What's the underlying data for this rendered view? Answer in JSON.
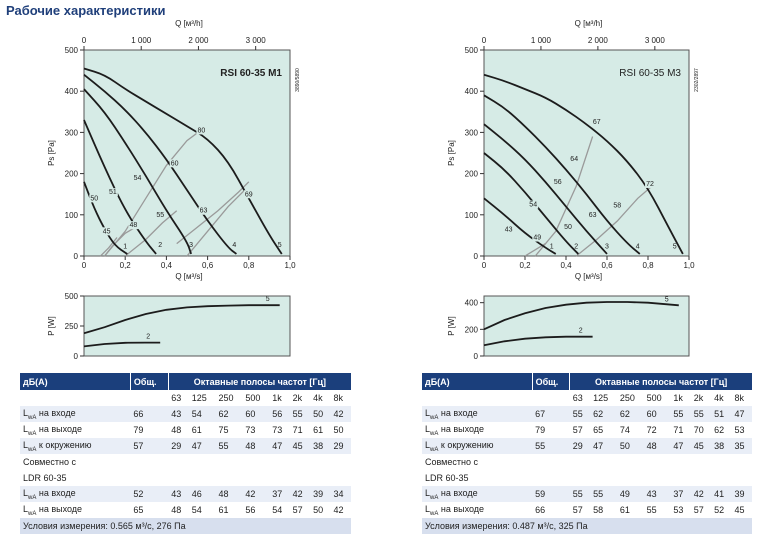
{
  "page_title": "Рабочие характеристики",
  "charts": [
    {
      "model_label": "RSI 60-35 M1",
      "doc_code": "3890/5890",
      "q_top_label": "Q [м³/h]",
      "q_bottom_label": "Q [м³/s]",
      "ps_label": "Ps [Pa]",
      "p_label": "P [W]"
    },
    {
      "model_label": "RSI 60-35 M3",
      "doc_code": "2302/2897",
      "q_top_label": "Q [м³/h]",
      "q_bottom_label": "Q [м³/s]",
      "ps_label": "Ps [Pa]",
      "p_label": "P [W]"
    }
  ],
  "chart_data": [
    {
      "type": "line",
      "title": "RSI 60-35 M1",
      "xlabel": "Q [м³/s]",
      "x2label": "Q [м³/h]",
      "ylabel": "Ps [Pa]",
      "xlim": [
        0,
        1.0
      ],
      "x2lim": [
        0,
        3600
      ],
      "ylim": [
        0,
        500
      ],
      "xticks": [
        "0",
        "0,2",
        "0,4",
        "0,6",
        "0,8",
        "1,0"
      ],
      "x2ticks": [
        "0",
        "1 000",
        "2 000",
        "3 000"
      ],
      "yticks": [
        "0",
        "100",
        "200",
        "300",
        "400",
        "500"
      ],
      "grid": false,
      "series": [
        {
          "name": "5",
          "x": [
            0,
            0.1,
            0.2,
            0.3,
            0.4,
            0.5,
            0.6,
            0.7,
            0.8,
            0.9,
            0.96
          ],
          "y": [
            455,
            440,
            405,
            375,
            345,
            315,
            285,
            230,
            140,
            50,
            5
          ]
        },
        {
          "name": "4",
          "x": [
            0,
            0.1,
            0.2,
            0.3,
            0.4,
            0.5,
            0.6,
            0.7,
            0.74
          ],
          "y": [
            440,
            400,
            355,
            300,
            235,
            160,
            85,
            20,
            5
          ]
        },
        {
          "name": "3",
          "x": [
            0,
            0.1,
            0.2,
            0.3,
            0.4,
            0.5,
            0.52
          ],
          "y": [
            405,
            350,
            275,
            195,
            110,
            35,
            5
          ]
        },
        {
          "name": "2",
          "x": [
            0,
            0.1,
            0.2,
            0.3,
            0.35
          ],
          "y": [
            330,
            215,
            110,
            35,
            5
          ]
        },
        {
          "name": "1",
          "x": [
            0,
            0.05,
            0.1,
            0.15,
            0.21
          ],
          "y": [
            180,
            115,
            65,
            25,
            5
          ]
        }
      ],
      "efficiency_curves": [
        {
          "name": "45",
          "x": [
            0.08,
            0.12,
            0.16
          ],
          "y": [
            0,
            20,
            45
          ]
        },
        {
          "name": "48",
          "x": [
            0.1,
            0.14,
            0.2,
            0.25
          ],
          "y": [
            0,
            25,
            55,
            70
          ]
        },
        {
          "name": "55",
          "x": [
            0.2,
            0.3,
            0.38,
            0.45
          ],
          "y": [
            0,
            40,
            80,
            110
          ]
        },
        {
          "name": "63",
          "x": [
            0.45,
            0.55,
            0.65,
            0.75,
            0.8
          ],
          "y": [
            30,
            70,
            110,
            155,
            180
          ]
        },
        {
          "name": "69",
          "x": [
            0.5,
            0.6,
            0.7,
            0.78
          ],
          "y": [
            0,
            60,
            120,
            160
          ]
        },
        {
          "name": "80",
          "x": [
            0.1,
            0.2,
            0.3,
            0.4,
            0.5,
            0.58
          ],
          "y": [
            0,
            60,
            140,
            220,
            280,
            310
          ]
        }
      ],
      "efficiency_labels": [
        {
          "text": "45",
          "x": 0.11,
          "y": 55
        },
        {
          "text": "48",
          "x": 0.24,
          "y": 70
        },
        {
          "text": "50",
          "x": 0.05,
          "y": 135
        },
        {
          "text": "51",
          "x": 0.14,
          "y": 150
        },
        {
          "text": "54",
          "x": 0.26,
          "y": 185
        },
        {
          "text": "55",
          "x": 0.37,
          "y": 95
        },
        {
          "text": "60",
          "x": 0.44,
          "y": 220
        },
        {
          "text": "63",
          "x": 0.58,
          "y": 105
        },
        {
          "text": "69",
          "x": 0.8,
          "y": 145
        },
        {
          "text": "80",
          "x": 0.57,
          "y": 300
        }
      ],
      "curve_labels": [
        {
          "text": "1",
          "x": 0.2,
          "y": 18
        },
        {
          "text": "2",
          "x": 0.37,
          "y": 22
        },
        {
          "text": "3",
          "x": 0.52,
          "y": 22
        },
        {
          "text": "4",
          "x": 0.73,
          "y": 22
        },
        {
          "text": "5",
          "x": 0.95,
          "y": 22
        }
      ]
    },
    {
      "type": "line",
      "title": "RSI 60-35 M3",
      "xlabel": "Q [м³/s]",
      "x2label": "Q [м³/h]",
      "ylabel": "Ps [Pa]",
      "xlim": [
        0,
        1.0
      ],
      "x2lim": [
        0,
        3600
      ],
      "ylim": [
        0,
        500
      ],
      "xticks": [
        "0",
        "0,2",
        "0,4",
        "0,6",
        "0,8",
        "1,0"
      ],
      "x2ticks": [
        "0",
        "1 000",
        "2 000",
        "3 000"
      ],
      "yticks": [
        "0",
        "100",
        "200",
        "300",
        "400",
        "500"
      ],
      "grid": false,
      "series": [
        {
          "name": "5",
          "x": [
            0,
            0.1,
            0.2,
            0.3,
            0.4,
            0.5,
            0.6,
            0.7,
            0.8,
            0.9,
            0.97
          ],
          "y": [
            440,
            425,
            405,
            385,
            355,
            320,
            280,
            230,
            165,
            70,
            5
          ]
        },
        {
          "name": "4",
          "x": [
            0,
            0.1,
            0.2,
            0.3,
            0.4,
            0.5,
            0.6,
            0.7,
            0.76
          ],
          "y": [
            390,
            360,
            315,
            265,
            210,
            150,
            85,
            30,
            5
          ]
        },
        {
          "name": "3",
          "x": [
            0,
            0.1,
            0.2,
            0.3,
            0.4,
            0.5,
            0.6
          ],
          "y": [
            320,
            280,
            235,
            180,
            120,
            60,
            5
          ]
        },
        {
          "name": "2",
          "x": [
            0,
            0.1,
            0.2,
            0.3,
            0.4,
            0.46
          ],
          "y": [
            250,
            210,
            155,
            95,
            35,
            5
          ]
        },
        {
          "name": "1",
          "x": [
            0,
            0.1,
            0.2,
            0.3,
            0.35
          ],
          "y": [
            140,
            100,
            55,
            20,
            5
          ]
        }
      ],
      "efficiency_curves": [
        {
          "name": "49",
          "x": [
            0.2,
            0.3
          ],
          "y": [
            0,
            30
          ]
        },
        {
          "name": "67",
          "x": [
            0.25,
            0.35,
            0.45,
            0.53
          ],
          "y": [
            0,
            60,
            170,
            290
          ]
        },
        {
          "name": "72",
          "x": [
            0.45,
            0.55,
            0.65,
            0.75,
            0.82
          ],
          "y": [
            0,
            40,
            85,
            140,
            170
          ]
        }
      ],
      "efficiency_labels": [
        {
          "text": "43",
          "x": 0.12,
          "y": 60
        },
        {
          "text": "49",
          "x": 0.26,
          "y": 40
        },
        {
          "text": "50",
          "x": 0.41,
          "y": 65
        },
        {
          "text": "54",
          "x": 0.24,
          "y": 120
        },
        {
          "text": "56",
          "x": 0.36,
          "y": 175
        },
        {
          "text": "58",
          "x": 0.65,
          "y": 118
        },
        {
          "text": "63",
          "x": 0.53,
          "y": 95
        },
        {
          "text": "64",
          "x": 0.44,
          "y": 230
        },
        {
          "text": "67",
          "x": 0.55,
          "y": 320
        },
        {
          "text": "72",
          "x": 0.81,
          "y": 170
        }
      ],
      "curve_labels": [
        {
          "text": "1",
          "x": 0.33,
          "y": 18
        },
        {
          "text": "2",
          "x": 0.45,
          "y": 18
        },
        {
          "text": "3",
          "x": 0.6,
          "y": 18
        },
        {
          "text": "4",
          "x": 0.75,
          "y": 18
        },
        {
          "text": "5",
          "x": 0.93,
          "y": 18
        }
      ]
    },
    {
      "type": "line",
      "title": "",
      "ylabel": "P [W]",
      "xlim": [
        0,
        1.0
      ],
      "ylim": [
        0,
        500
      ],
      "yticks": [
        "0",
        "250",
        "500"
      ],
      "series": [
        {
          "name": "5",
          "x": [
            0,
            0.1,
            0.2,
            0.3,
            0.4,
            0.5,
            0.6,
            0.7,
            0.8,
            0.95
          ],
          "y": [
            190,
            240,
            300,
            350,
            385,
            405,
            415,
            420,
            423,
            423
          ]
        },
        {
          "name": "2",
          "x": [
            0,
            0.1,
            0.2,
            0.3,
            0.37
          ],
          "y": [
            80,
            100,
            110,
            112,
            112
          ]
        }
      ]
    },
    {
      "type": "line",
      "title": "",
      "ylabel": "P [W]",
      "xlim": [
        0,
        1.0
      ],
      "ylim": [
        0,
        450
      ],
      "yticks": [
        "0",
        "200",
        "400"
      ],
      "series": [
        {
          "name": "5",
          "x": [
            0,
            0.1,
            0.2,
            0.3,
            0.4,
            0.5,
            0.6,
            0.7,
            0.8,
            0.95
          ],
          "y": [
            200,
            270,
            320,
            360,
            385,
            400,
            405,
            405,
            400,
            380
          ]
        },
        {
          "name": "2",
          "x": [
            0,
            0.1,
            0.2,
            0.3,
            0.4,
            0.53
          ],
          "y": [
            80,
            110,
            130,
            140,
            145,
            145
          ]
        }
      ]
    }
  ],
  "tables": [
    {
      "head": [
        "дБ(A)",
        "Общ.",
        "Октавные полосы частот [Гц]"
      ],
      "freqs": [
        "63",
        "125",
        "250",
        "500",
        "1k",
        "2k",
        "4k",
        "8k"
      ],
      "rows": [
        {
          "label": "на входе",
          "lw": "L",
          "sub": "wA",
          "total": "66",
          "vals": [
            "43",
            "54",
            "62",
            "60",
            "56",
            "55",
            "50",
            "42"
          ]
        },
        {
          "label": "на выходе",
          "lw": "L",
          "sub": "wA",
          "total": "79",
          "vals": [
            "48",
            "61",
            "75",
            "73",
            "73",
            "71",
            "61",
            "50"
          ]
        },
        {
          "label": "к окружению",
          "lw": "L",
          "sub": "wA",
          "total": "57",
          "vals": [
            "29",
            "47",
            "55",
            "48",
            "47",
            "45",
            "38",
            "29"
          ]
        }
      ],
      "section_label_1": "Совместно с",
      "section_label_2": "LDR 60-35",
      "rows2": [
        {
          "label": "на входе",
          "lw": "L",
          "sub": "wA",
          "total": "52",
          "vals": [
            "43",
            "46",
            "48",
            "42",
            "37",
            "42",
            "39",
            "34"
          ]
        },
        {
          "label": "на выходе",
          "lw": "L",
          "sub": "wA",
          "total": "65",
          "vals": [
            "48",
            "54",
            "61",
            "56",
            "54",
            "57",
            "50",
            "42"
          ]
        }
      ],
      "note": "Условия измерения: 0.565 м³/с, 276 Па"
    },
    {
      "head": [
        "дБ(A)",
        "Общ.",
        "Октавные полосы частот [Гц]"
      ],
      "freqs": [
        "63",
        "125",
        "250",
        "500",
        "1k",
        "2k",
        "4k",
        "8k"
      ],
      "rows": [
        {
          "label": "на входе",
          "lw": "L",
          "sub": "wA",
          "total": "67",
          "vals": [
            "55",
            "62",
            "62",
            "60",
            "55",
            "55",
            "51",
            "47"
          ]
        },
        {
          "label": "на выходе",
          "lw": "L",
          "sub": "wA",
          "total": "79",
          "vals": [
            "57",
            "65",
            "74",
            "72",
            "71",
            "70",
            "62",
            "53"
          ]
        },
        {
          "label": "к окружению",
          "lw": "L",
          "sub": "wA",
          "total": "55",
          "vals": [
            "29",
            "47",
            "50",
            "48",
            "47",
            "45",
            "38",
            "35"
          ]
        }
      ],
      "section_label_1": "Совместно с",
      "section_label_2": "LDR 60-35",
      "rows2": [
        {
          "label": "на входе",
          "lw": "L",
          "sub": "wA",
          "total": "59",
          "vals": [
            "55",
            "55",
            "49",
            "43",
            "37",
            "42",
            "41",
            "39"
          ]
        },
        {
          "label": "на выходе",
          "lw": "L",
          "sub": "wA",
          "total": "66",
          "vals": [
            "57",
            "58",
            "61",
            "55",
            "53",
            "57",
            "52",
            "45"
          ]
        }
      ],
      "note": "Условия измерения: 0.487 м³/с, 325 Па"
    }
  ],
  "colors": {
    "plot_bg": "#d6ebe6",
    "curve": "#1c1c1c",
    "eff": "#9a9a9a",
    "header": "#1b3f7c"
  }
}
